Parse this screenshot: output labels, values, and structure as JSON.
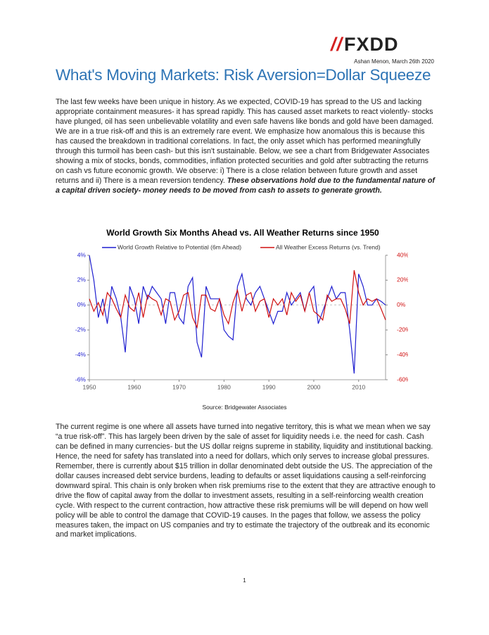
{
  "header": {
    "logo": "FXDD",
    "author": "Ashan Menon, March 26th 2020"
  },
  "title": "What's Moving Markets: Risk Aversion=Dollar Squeeze",
  "paragraph1": {
    "text": "The last few weeks have been unique in history. As we expected, COVID-19 has spread to the US and lacking appropriate containment measures- it has spread rapidly. This has caused asset markets to react violently- stocks have plunged, oil has seen unbelievable volatility and even safe havens like bonds and gold have been damaged. We are in a true risk-off and this is an extremely rare event. We emphasize how anomalous this is because this has caused the breakdown in traditional correlations. In fact, the only asset which has performed meaningfully through this turmoil has been cash- but this isn't sustainable. Below, we see a chart from Bridgewater Associates showing a mix of stocks, bonds, commodities, inflation protected securities and gold after subtracting the returns on cash vs future economic growth. We observe: i) There is a close relation between future growth and asset returns and ii) There is a mean reversion tendency.",
    "emphasis": "These observations hold due to the fundamental nature of a capital driven society- money needs to be moved from cash to assets to generate growth."
  },
  "chart_data": {
    "type": "line",
    "title": "World Growth Six Months Ahead vs. All Weather Returns since 1950",
    "x": [
      1950,
      1951,
      1952,
      1953,
      1954,
      1955,
      1956,
      1957,
      1958,
      1959,
      1960,
      1961,
      1962,
      1963,
      1964,
      1965,
      1966,
      1967,
      1968,
      1969,
      1970,
      1971,
      1972,
      1973,
      1974,
      1975,
      1976,
      1977,
      1978,
      1979,
      1980,
      1981,
      1982,
      1983,
      1984,
      1985,
      1986,
      1987,
      1988,
      1989,
      1990,
      1991,
      1992,
      1993,
      1994,
      1995,
      1996,
      1997,
      1998,
      1999,
      2000,
      2001,
      2002,
      2003,
      2004,
      2005,
      2006,
      2007,
      2008,
      2009,
      2010,
      2011,
      2012,
      2013,
      2014,
      2015,
      2016
    ],
    "series": [
      {
        "name": "World Growth Relative to Potential (6m Ahead)",
        "color": "#1f1fd0",
        "values": [
          4,
          2,
          -1,
          0.5,
          -1.5,
          1.5,
          0.5,
          -1,
          -3.8,
          1.5,
          0.5,
          -1.5,
          1.5,
          0.5,
          1.5,
          1,
          0.5,
          -1.5,
          1,
          1,
          -1,
          -1.5,
          1.5,
          2.2,
          -3,
          -4.2,
          1.5,
          0.5,
          0.5,
          0.5,
          -2,
          -2.5,
          -2.8,
          1.5,
          2.5,
          0.5,
          0,
          1,
          1.5,
          0.5,
          -0.5,
          -1.5,
          -0.5,
          -0.5,
          1,
          0,
          0.5,
          1,
          -0.5,
          1,
          1.5,
          -1.5,
          -0.5,
          0.5,
          1.5,
          0.5,
          1,
          1,
          -2,
          -5.5,
          2.5,
          1.5,
          0,
          0,
          0.5,
          0.3,
          0
        ]
      },
      {
        "name": "All Weather Excess Returns (vs. Trend)",
        "color": "#d01010",
        "axis": "y2",
        "values": [
          5,
          -5,
          2,
          -8,
          10,
          5,
          -3,
          -10,
          8,
          -2,
          -5,
          10,
          -10,
          8,
          5,
          3,
          -8,
          5,
          3,
          -12,
          -5,
          8,
          10,
          -10,
          -18,
          8,
          8,
          -3,
          -5,
          5,
          -8,
          -15,
          2,
          12,
          -5,
          8,
          10,
          -5,
          3,
          5,
          -10,
          5,
          0,
          5,
          -8,
          10,
          3,
          8,
          -5,
          10,
          -5,
          -8,
          -12,
          8,
          3,
          5,
          5,
          -3,
          -15,
          28,
          10,
          0,
          5,
          3,
          5,
          -3,
          -12
        ]
      }
    ],
    "xlim": [
      1950,
      2016
    ],
    "xticks": [
      1950,
      1960,
      1970,
      1980,
      1990,
      2000,
      2010
    ],
    "ylim": [
      -6,
      4
    ],
    "yticks": [
      {
        "value": 4,
        "label": "4%"
      },
      {
        "value": 2,
        "label": "2%"
      },
      {
        "value": 0,
        "label": "0%"
      },
      {
        "value": -2,
        "label": "-2%"
      },
      {
        "value": -4,
        "label": "-4%"
      },
      {
        "value": -6,
        "label": "-6%"
      }
    ],
    "y2lim": [
      -60,
      40
    ],
    "y2ticks": [
      {
        "value": 40,
        "label": "40%"
      },
      {
        "value": 20,
        "label": "20%"
      },
      {
        "value": 0,
        "label": "0%"
      },
      {
        "value": -20,
        "label": "-20%"
      },
      {
        "value": -40,
        "label": "-40%"
      },
      {
        "value": -60,
        "label": "-60%"
      }
    ]
  },
  "source": "Source: Bridgewater Associates",
  "paragraph2": "The current regime is one where all assets have turned into negative territory, this is what we mean when we say “a true risk-off”. This has largely been driven by the sale of asset for liquidity needs i.e. the need for cash. Cash can be defined in many currencies- but the US dollar reigns supreme in stability, liquidity and institutional backing. Hence, the need for safety has translated into a need for dollars, which only serves to increase global pressures. Remember, there is currently about $15 trillion in dollar denominated debt outside the US. The appreciation of the dollar causes increased debt service burdens, leading to defaults or asset liquidations causing a self-reinforcing downward spiral. This chain is only broken when risk premiums rise to the extent that they are attractive enough to drive the flow of capital away from the dollar to investment assets, resulting in a self-reinforcing wealth creation cycle. With respect to the current contraction, how attractive these risk premiums will be will depend on how well policy will be able to control the damage that COVID-19 causes. In the pages that follow, we assess the policy measures taken, the impact on US companies and try to estimate the trajectory of the outbreak and its economic and market implications.",
  "page_number": "1"
}
